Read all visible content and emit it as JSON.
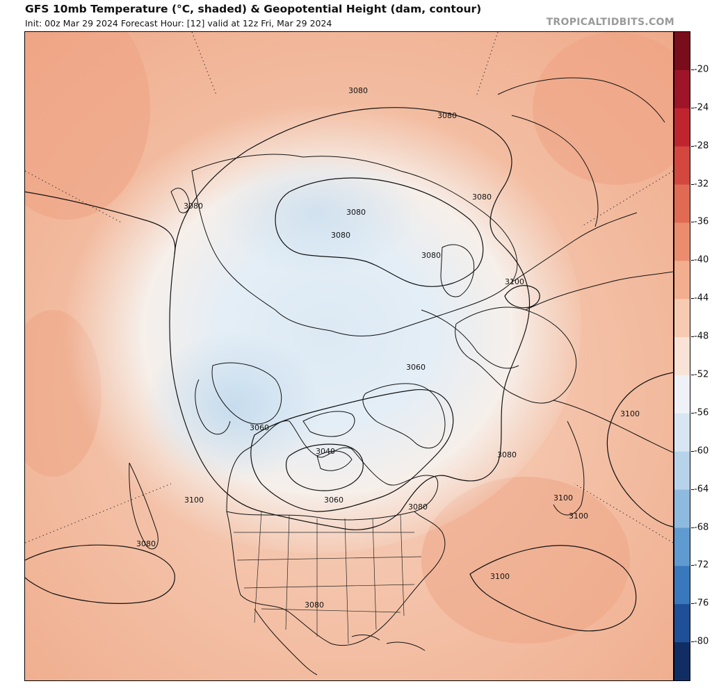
{
  "header": {
    "title": "GFS 10mb Temperature (°C, shaded) & Geopotential Height (dam, contour)",
    "subtitle": "Init: 00z Mar 29 2024   Forecast Hour: [12]   valid at 12z Fri, Mar 29 2024",
    "brand": "TROPICALTIDBITS.COM"
  },
  "colorbar": {
    "labels": [
      "-20",
      "-24",
      "-28",
      "-32",
      "-36",
      "-40",
      "-44",
      "-48",
      "-52",
      "-56",
      "-60",
      "-64",
      "-68",
      "-72",
      "-76",
      "-80"
    ],
    "colors": [
      "#7a0d1c",
      "#9e1428",
      "#c0252f",
      "#d3473f",
      "#e06a54",
      "#eb8c6e",
      "#f3ad8f",
      "#f7cab2",
      "#f8e3d6",
      "#eef2f7",
      "#d7e6f2",
      "#b7d3ea",
      "#8fbadf",
      "#5f9bd0",
      "#3a78bd",
      "#1f4f96",
      "#102e63"
    ]
  },
  "contour_labels": [
    {
      "text": "3080"
    },
    {
      "text": "3080"
    },
    {
      "text": "3080"
    },
    {
      "text": "3080"
    },
    {
      "text": "3080"
    },
    {
      "text": "3080"
    },
    {
      "text": "3080"
    },
    {
      "text": "3100"
    },
    {
      "text": "3060"
    },
    {
      "text": "3060"
    },
    {
      "text": "3040"
    },
    {
      "text": "3060"
    },
    {
      "text": "3080"
    },
    {
      "text": "3080"
    },
    {
      "text": "3100"
    },
    {
      "text": "3100"
    },
    {
      "text": "3100"
    },
    {
      "text": "3100"
    },
    {
      "text": "3080"
    },
    {
      "text": "3080"
    },
    {
      "text": "3100"
    }
  ]
}
